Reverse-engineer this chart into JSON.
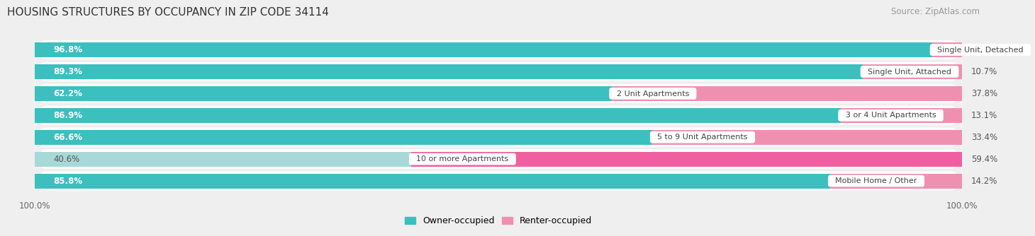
{
  "title": "HOUSING STRUCTURES BY OCCUPANCY IN ZIP CODE 34114",
  "source": "Source: ZipAtlas.com",
  "categories": [
    "Single Unit, Detached",
    "Single Unit, Attached",
    "2 Unit Apartments",
    "3 or 4 Unit Apartments",
    "5 to 9 Unit Apartments",
    "10 or more Apartments",
    "Mobile Home / Other"
  ],
  "owner_pct": [
    96.8,
    89.3,
    62.2,
    86.9,
    66.6,
    40.6,
    85.8
  ],
  "renter_pct": [
    3.3,
    10.7,
    37.8,
    13.1,
    33.4,
    59.4,
    14.2
  ],
  "owner_colors": [
    "#3bbfbf",
    "#3bbfbf",
    "#3bbfbf",
    "#3bbfbf",
    "#3bbfbf",
    "#a8d8d8",
    "#3bbfbf"
  ],
  "renter_colors": [
    "#f090b0",
    "#f090b0",
    "#f090b0",
    "#f090b0",
    "#f090b0",
    "#f060a0",
    "#f090b0"
  ],
  "row_bg_color": "#ffffff",
  "outer_bg_color": "#efefef",
  "title_fontsize": 11,
  "source_fontsize": 8.5,
  "bar_label_fontsize": 8.5,
  "cat_label_fontsize": 8,
  "value_label_fontsize": 8.5,
  "bar_height": 0.68,
  "legend_owner": "Owner-occupied",
  "legend_renter": "Renter-occupied",
  "legend_owner_color": "#3bbfbf",
  "legend_renter_color": "#f090b0"
}
